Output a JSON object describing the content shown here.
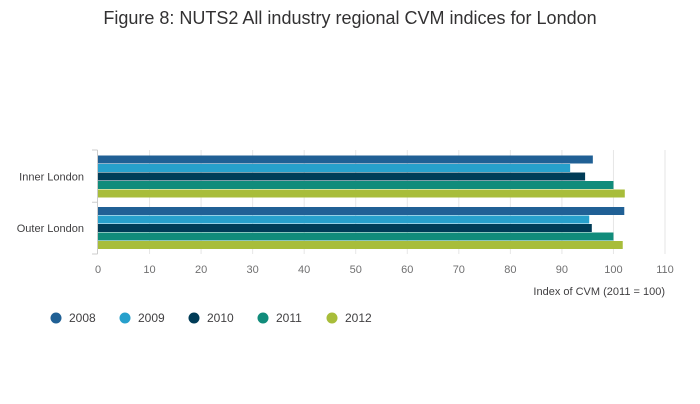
{
  "chart_data": {
    "type": "bar",
    "orientation": "horizontal",
    "title": "Figure 8: NUTS2 All industry regional CVM indices for London",
    "xlabel": "Index of CVM (2011 = 100)",
    "ylabel": "",
    "xlim": [
      0,
      110
    ],
    "x_ticks": [
      "0",
      "10",
      "20",
      "30",
      "40",
      "50",
      "60",
      "70",
      "80",
      "90",
      "100",
      "110"
    ],
    "categories": [
      "Inner London",
      "Outer London"
    ],
    "series": [
      {
        "name": "2008",
        "color": "#206095",
        "values": [
          96.0,
          102.1
        ]
      },
      {
        "name": "2009",
        "color": "#27a0cc",
        "values": [
          91.6,
          95.3
        ]
      },
      {
        "name": "2010",
        "color": "#003c57",
        "values": [
          94.5,
          95.8
        ]
      },
      {
        "name": "2011",
        "color": "#118c7b",
        "values": [
          100,
          100
        ]
      },
      {
        "name": "2012",
        "color": "#a8bd3a",
        "values": [
          102.2,
          101.8
        ]
      }
    ],
    "grid": true,
    "legend_position": "bottom-left"
  }
}
